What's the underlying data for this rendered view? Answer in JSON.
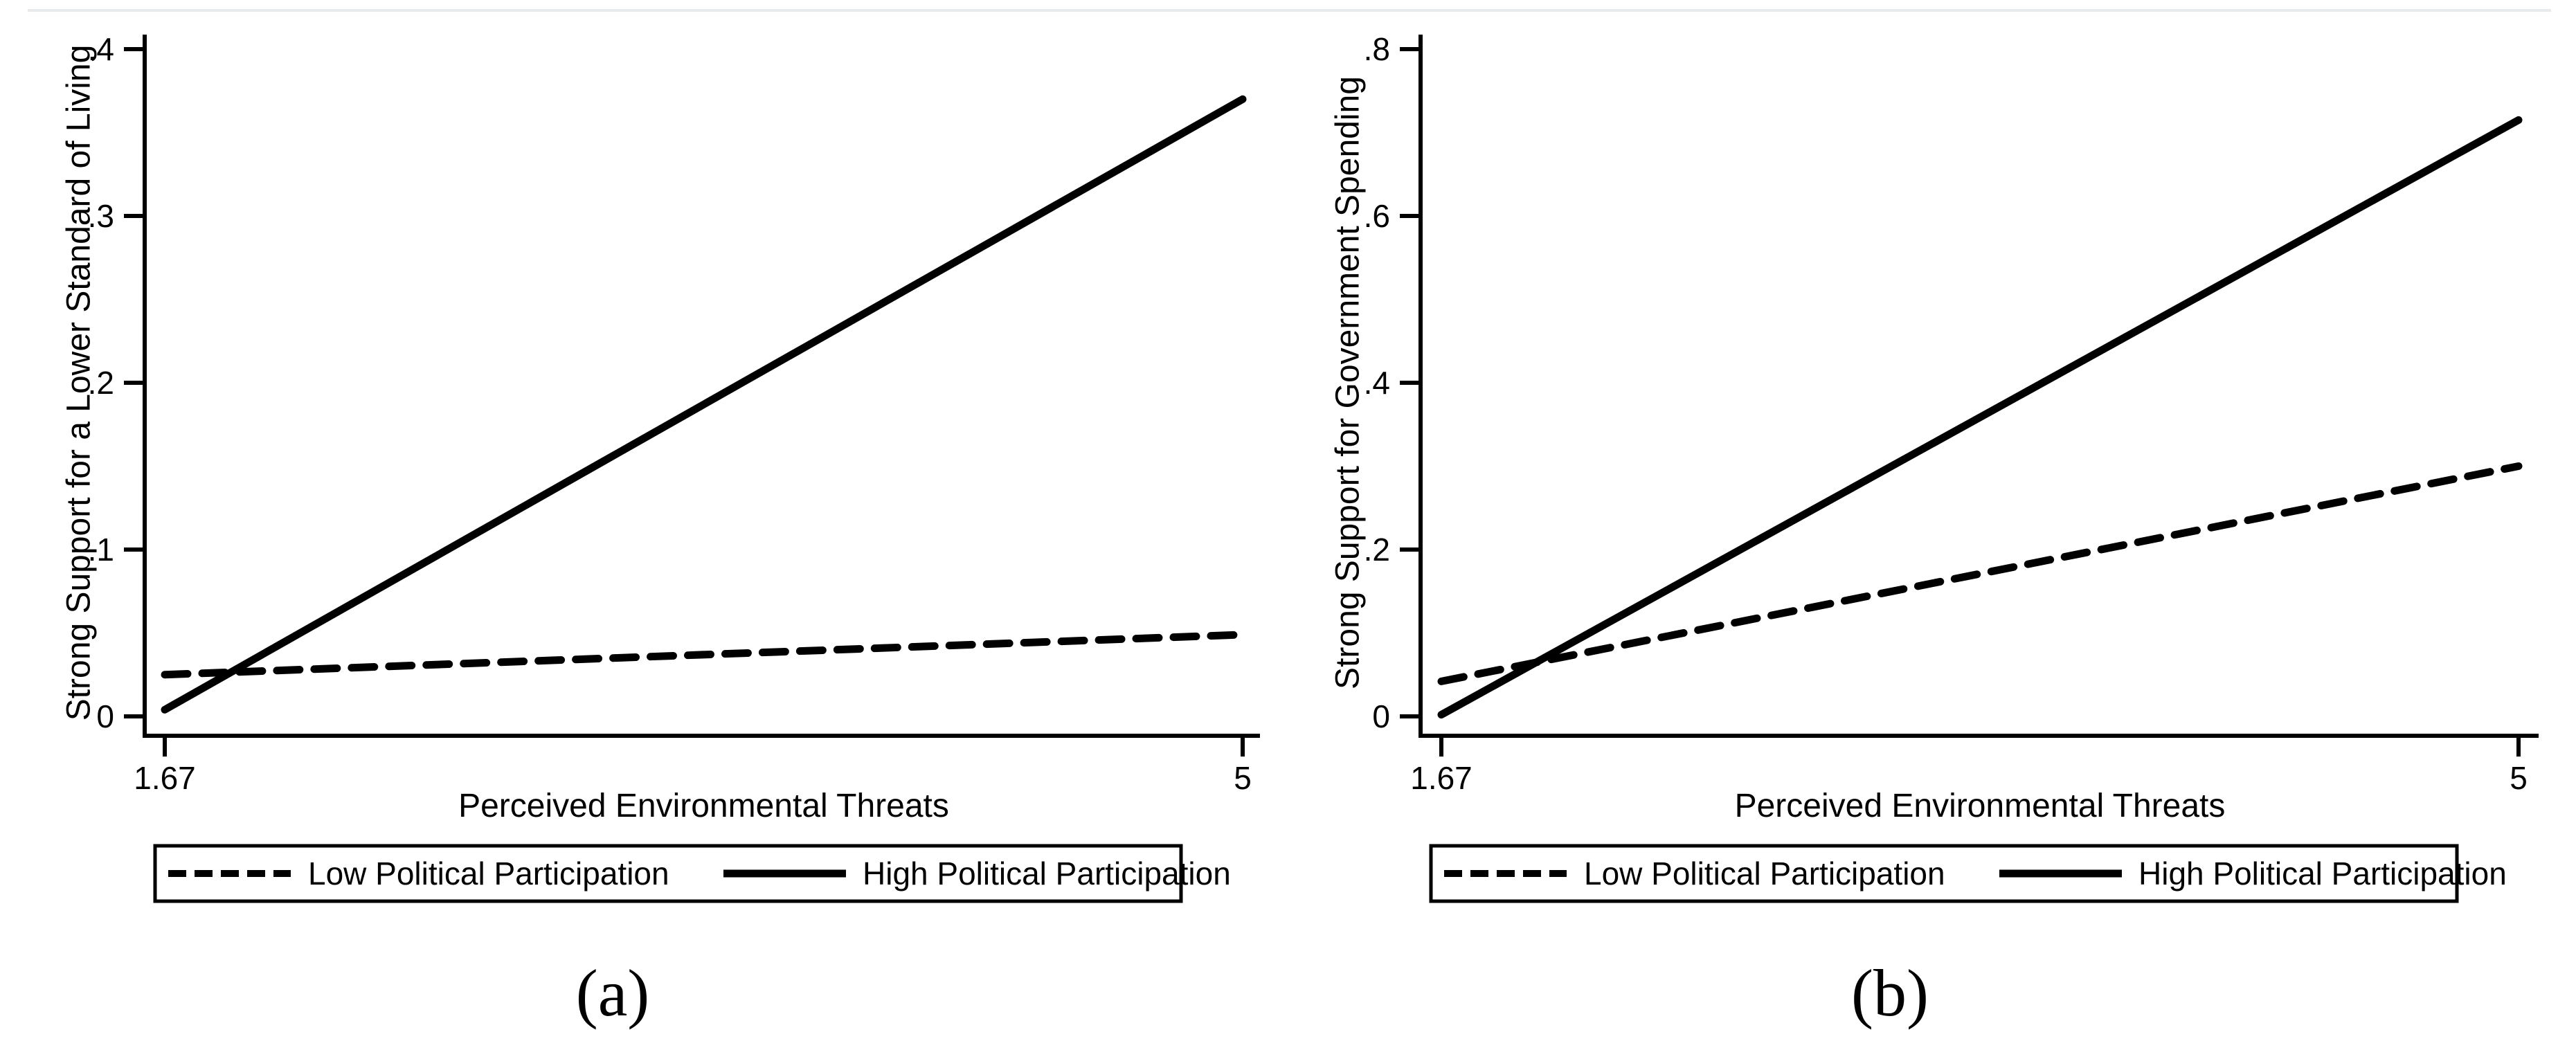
{
  "figure": {
    "background": "#ffffff",
    "line_color": "#000000",
    "top_rule_color": "#e8ebee"
  },
  "chart_data": [
    {
      "type": "line",
      "caption": "(a)",
      "title": "",
      "xlabel": "Perceived Environmental Threats",
      "ylabel": "Strong Support for a Lower Standard of Living",
      "xlim": [
        1.67,
        5
      ],
      "ylim": [
        0,
        0.4
      ],
      "grid": false,
      "legend_position": "below",
      "x_ticks": [
        {
          "value": 1.67,
          "label": "1.67"
        },
        {
          "value": 5,
          "label": "5"
        }
      ],
      "y_ticks": [
        {
          "value": 0,
          "label": "0"
        },
        {
          "value": 0.1,
          "label": ".1"
        },
        {
          "value": 0.2,
          "label": ".2"
        },
        {
          "value": 0.3,
          "label": ".3"
        },
        {
          "value": 0.4,
          "label": ".4"
        }
      ],
      "series": [
        {
          "name": "Low Political Participation",
          "style": "dashed",
          "points": [
            [
              1.67,
              0.025
            ],
            [
              5,
              0.049
            ]
          ]
        },
        {
          "name": "High Political Participation",
          "style": "solid",
          "points": [
            [
              1.67,
              0.004
            ],
            [
              5,
              0.37
            ]
          ]
        }
      ]
    },
    {
      "type": "line",
      "caption": "(b)",
      "title": "",
      "xlabel": "Perceived Environmental Threats",
      "ylabel": "Strong Support for Government Spending",
      "xlim": [
        1.67,
        5
      ],
      "ylim": [
        0,
        0.8
      ],
      "grid": false,
      "legend_position": "below",
      "x_ticks": [
        {
          "value": 1.67,
          "label": "1.67"
        },
        {
          "value": 5,
          "label": "5"
        }
      ],
      "y_ticks": [
        {
          "value": 0,
          "label": "0"
        },
        {
          "value": 0.2,
          "label": ".2"
        },
        {
          "value": 0.4,
          "label": ".4"
        },
        {
          "value": 0.6,
          "label": ".6"
        },
        {
          "value": 0.8,
          "label": ".8"
        }
      ],
      "series": [
        {
          "name": "Low Political Participation",
          "style": "dashed",
          "points": [
            [
              1.67,
              0.042
            ],
            [
              5,
              0.3
            ]
          ]
        },
        {
          "name": "High Political Participation",
          "style": "solid",
          "points": [
            [
              1.67,
              0.002
            ],
            [
              5,
              0.715
            ]
          ]
        }
      ]
    }
  ]
}
